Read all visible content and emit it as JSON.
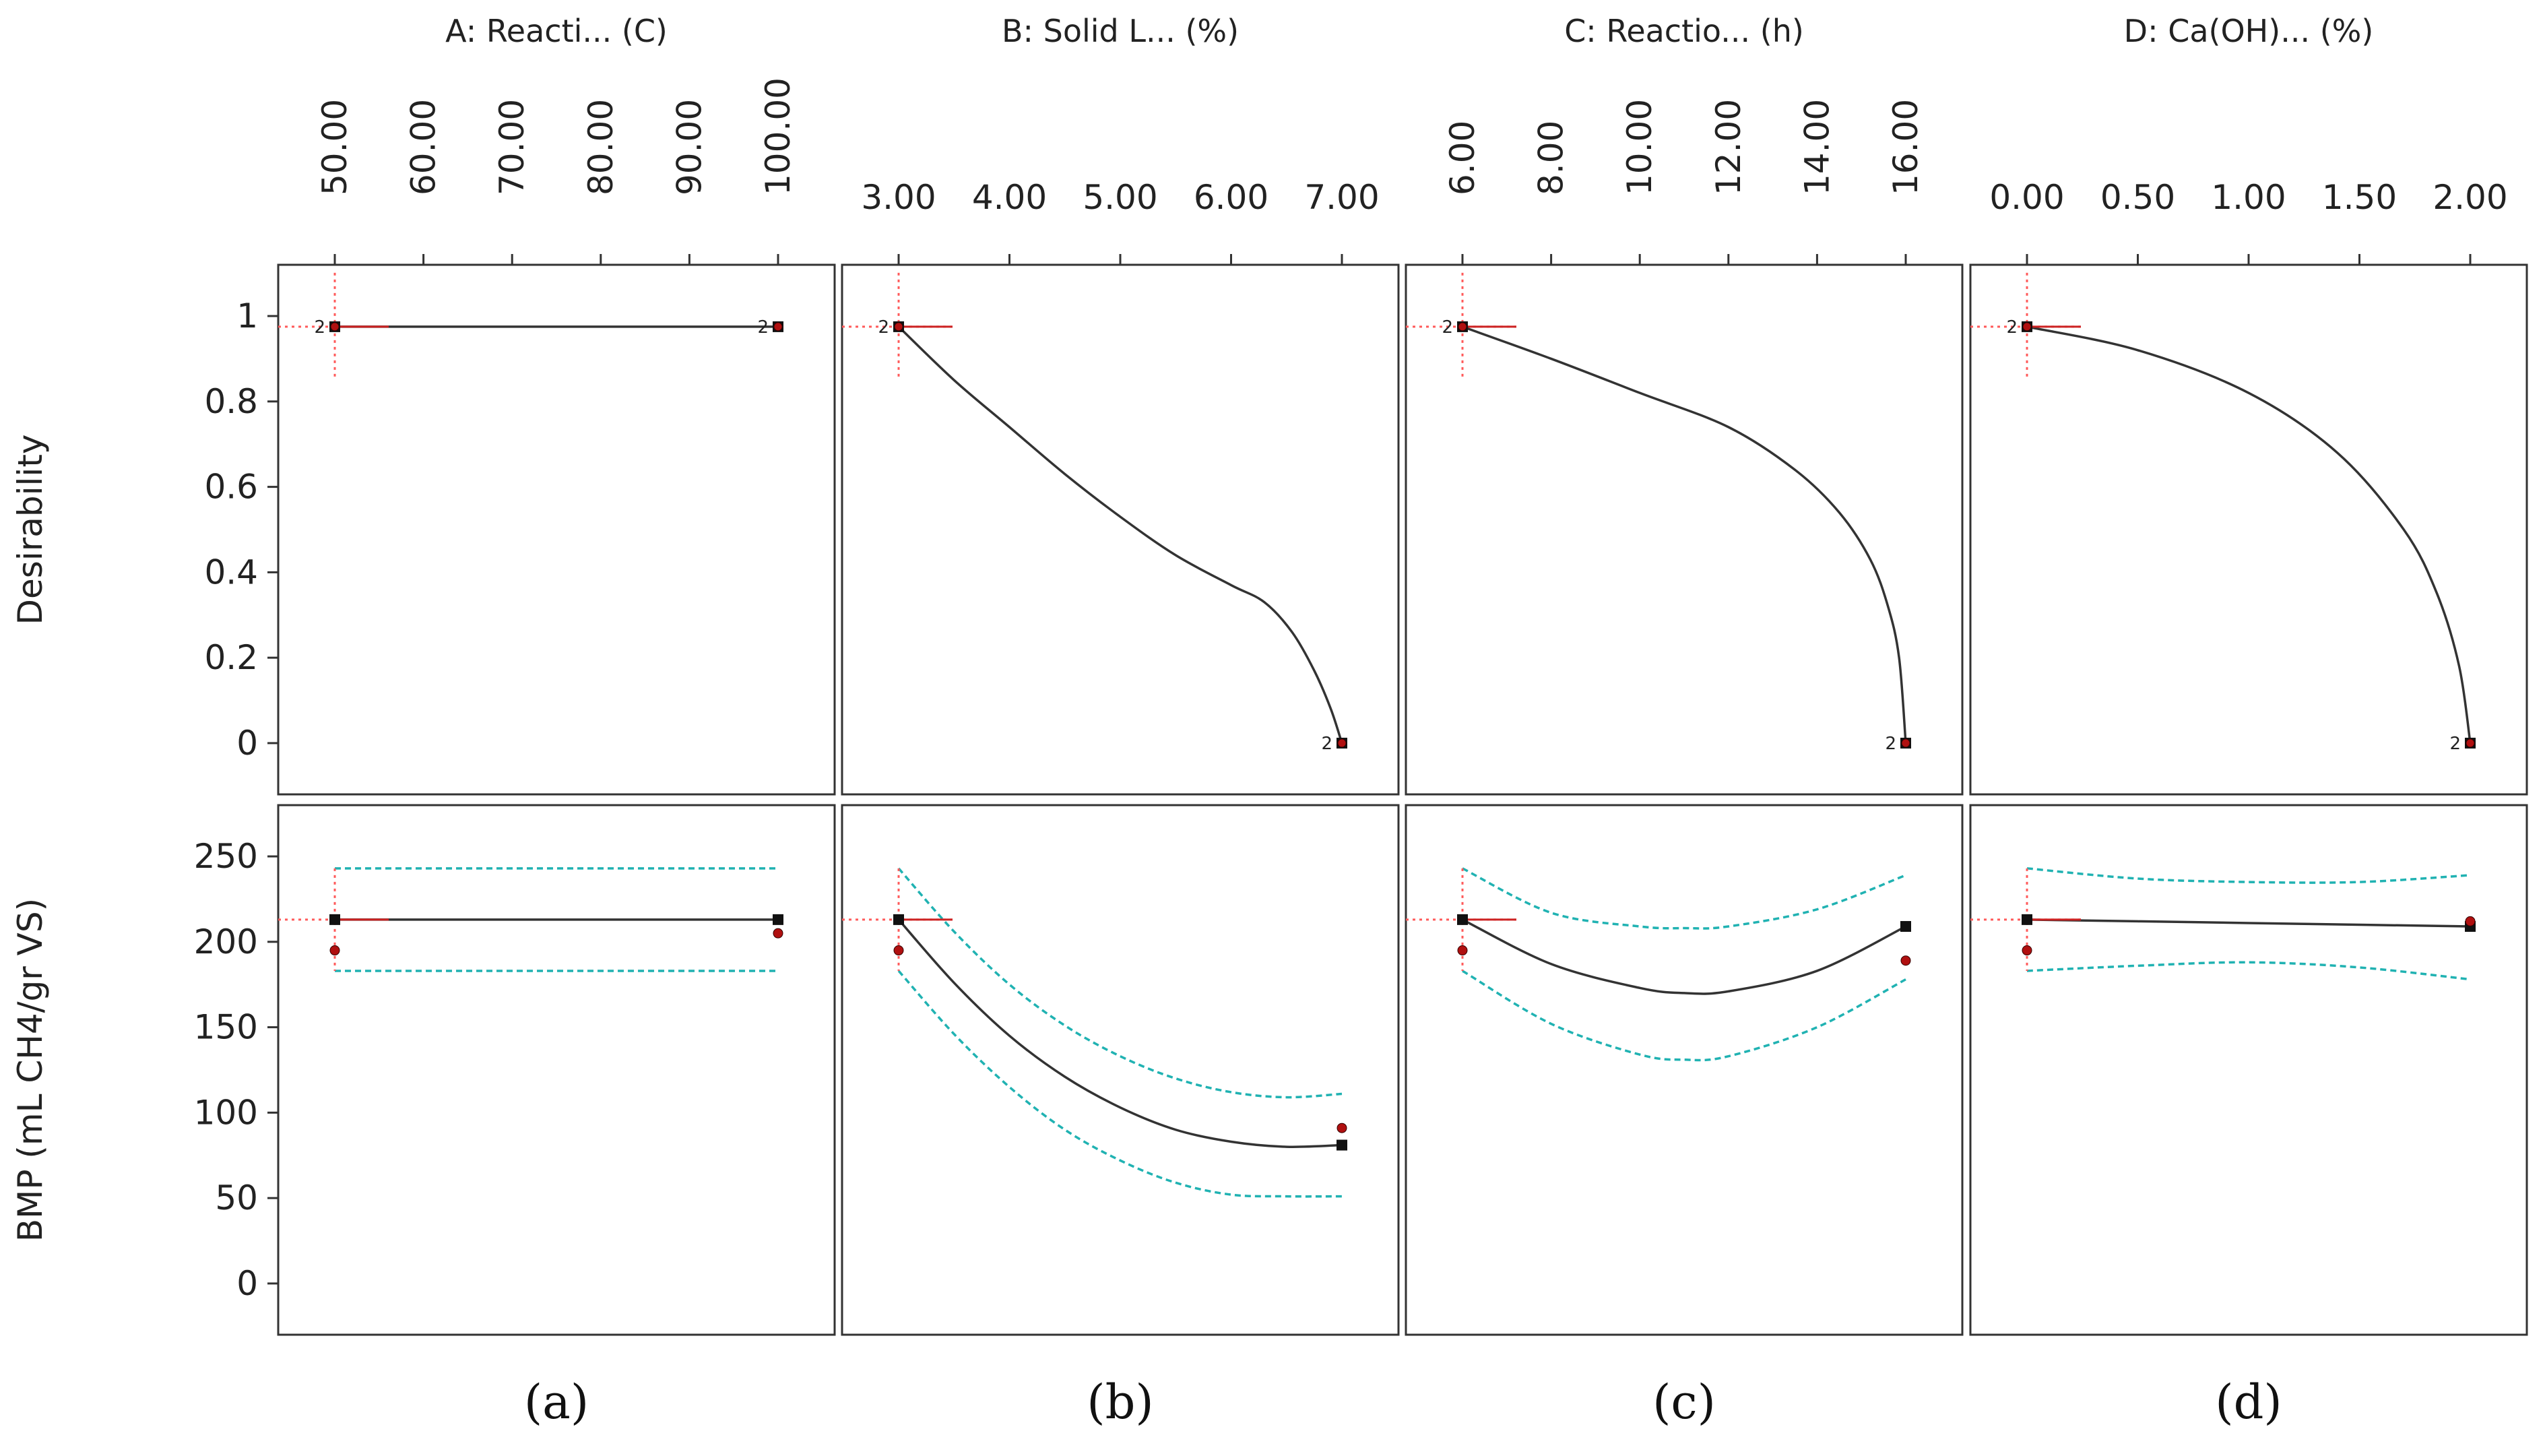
{
  "figure": {
    "panel_letters": [
      "(a)",
      "(b)",
      "(c)",
      "(d)"
    ]
  },
  "chart_data": {
    "type": "line",
    "row_ylabels": [
      "Desirability",
      "BMP (mL CH4/gr VS)"
    ],
    "rows": [
      {
        "name": "Desirability",
        "ylim": [
          -0.12,
          1.12
        ],
        "yticks": [
          0,
          0.2,
          0.4,
          0.6,
          0.8,
          1
        ],
        "ytick_labels": [
          "0",
          "0.2",
          "0.4",
          "0.6",
          "0.8",
          "1"
        ]
      },
      {
        "name": "BMP (mL CH4/gr VS)",
        "ylim": [
          -30,
          280
        ],
        "yticks": [
          0,
          50,
          100,
          150,
          200,
          250
        ],
        "ytick_labels": [
          "0",
          "50",
          "100",
          "150",
          "200",
          "250"
        ]
      }
    ],
    "factors": [
      {
        "title": "A: Reacti... (C)",
        "xrange": [
          50,
          100
        ],
        "xticks": [
          50,
          60,
          70,
          80,
          90,
          100
        ],
        "xtick_labels": [
          "50.00",
          "60.00",
          "70.00",
          "80.00",
          "90.00",
          "100.00"
        ],
        "xtick_rotated": true,
        "setpoint": 50,
        "desirability": {
          "curve": [
            [
              50,
              0.975
            ],
            [
              100,
              0.975
            ]
          ],
          "points": [
            {
              "x": 50,
              "y": 0.975,
              "label": "2"
            },
            {
              "x": 100,
              "y": 0.975,
              "label": "2"
            }
          ]
        },
        "bmp": {
          "predicted": [
            [
              50,
              213
            ],
            [
              100,
              213
            ]
          ],
          "ci_upper": [
            [
              50,
              243
            ],
            [
              100,
              243
            ]
          ],
          "ci_lower": [
            [
              50,
              183
            ],
            [
              100,
              183
            ]
          ],
          "observed": [
            [
              50,
              195
            ],
            [
              100,
              205
            ]
          ],
          "pred_markers": [
            [
              50,
              213
            ],
            [
              100,
              213
            ]
          ]
        }
      },
      {
        "title": "B: Solid L... (%)",
        "xrange": [
          3,
          7
        ],
        "xticks": [
          3,
          4,
          5,
          6,
          7
        ],
        "xtick_labels": [
          "3.00",
          "4.00",
          "5.00",
          "6.00",
          "7.00"
        ],
        "xtick_rotated": false,
        "setpoint": 3,
        "desirability": {
          "curve": [
            [
              3,
              0.975
            ],
            [
              3.5,
              0.85
            ],
            [
              4,
              0.74
            ],
            [
              4.5,
              0.63
            ],
            [
              5,
              0.53
            ],
            [
              5.5,
              0.44
            ],
            [
              6,
              0.37
            ],
            [
              6.3,
              0.33
            ],
            [
              6.55,
              0.26
            ],
            [
              6.75,
              0.17
            ],
            [
              6.9,
              0.08
            ],
            [
              7,
              0
            ]
          ],
          "points": [
            {
              "x": 3,
              "y": 0.975,
              "label": "2"
            },
            {
              "x": 7,
              "y": 0,
              "label": "2"
            }
          ]
        },
        "bmp": {
          "predicted": [
            [
              3,
              213
            ],
            [
              3.5,
              176
            ],
            [
              4,
              145
            ],
            [
              4.5,
              121
            ],
            [
              5,
              103
            ],
            [
              5.5,
              90
            ],
            [
              6,
              83
            ],
            [
              6.5,
              80
            ],
            [
              7,
              81
            ]
          ],
          "ci_upper": [
            [
              3,
              243
            ],
            [
              3.5,
              206
            ],
            [
              4,
              175
            ],
            [
              4.5,
              151
            ],
            [
              5,
              133
            ],
            [
              5.5,
              120
            ],
            [
              6,
              112
            ],
            [
              6.5,
              109
            ],
            [
              7,
              111
            ]
          ],
          "ci_lower": [
            [
              3,
              183
            ],
            [
              3.5,
              146
            ],
            [
              4,
              115
            ],
            [
              4.5,
              90
            ],
            [
              5,
              72
            ],
            [
              5.5,
              59
            ],
            [
              6,
              52
            ],
            [
              6.5,
              51
            ],
            [
              7,
              51
            ]
          ],
          "observed": [
            [
              3,
              195
            ],
            [
              7,
              91
            ]
          ],
          "pred_markers": [
            [
              3,
              213
            ],
            [
              7,
              81
            ]
          ]
        }
      },
      {
        "title": "C: Reactio... (h)",
        "xrange": [
          6,
          16
        ],
        "xticks": [
          6,
          8,
          10,
          12,
          14,
          16
        ],
        "xtick_labels": [
          "6.00",
          "8.00",
          "10.00",
          "12.00",
          "14.00",
          "16.00"
        ],
        "xtick_rotated": true,
        "setpoint": 6,
        "desirability": {
          "curve": [
            [
              6,
              0.975
            ],
            [
              8,
              0.9
            ],
            [
              10,
              0.82
            ],
            [
              12,
              0.74
            ],
            [
              13.5,
              0.64
            ],
            [
              14.5,
              0.54
            ],
            [
              15.2,
              0.43
            ],
            [
              15.6,
              0.32
            ],
            [
              15.85,
              0.2
            ],
            [
              16,
              0
            ]
          ],
          "points": [
            {
              "x": 6,
              "y": 0.975,
              "label": "2"
            },
            {
              "x": 16,
              "y": 0,
              "label": "2"
            }
          ]
        },
        "bmp": {
          "predicted": [
            [
              6,
              213
            ],
            [
              8,
              187
            ],
            [
              10,
              173
            ],
            [
              11,
              170
            ],
            [
              12,
              171
            ],
            [
              14,
              183
            ],
            [
              16,
              209
            ]
          ],
          "ci_upper": [
            [
              6,
              243
            ],
            [
              8,
              217
            ],
            [
              10,
              209
            ],
            [
              11,
              208
            ],
            [
              12,
              209
            ],
            [
              14,
              219
            ],
            [
              16,
              239
            ]
          ],
          "ci_lower": [
            [
              6,
              183
            ],
            [
              8,
              152
            ],
            [
              10,
              134
            ],
            [
              11,
              131
            ],
            [
              12,
              133
            ],
            [
              14,
              150
            ],
            [
              16,
              178
            ]
          ],
          "observed": [
            [
              6,
              195
            ],
            [
              16,
              189
            ]
          ],
          "pred_markers": [
            [
              6,
              213
            ],
            [
              16,
              209
            ]
          ]
        }
      },
      {
        "title": "D: Ca(OH)... (%)",
        "xrange": [
          0,
          2
        ],
        "xticks": [
          0,
          0.5,
          1,
          1.5,
          2
        ],
        "xtick_labels": [
          "0.00",
          "0.50",
          "1.00",
          "1.50",
          "2.00"
        ],
        "xtick_rotated": false,
        "setpoint": 0,
        "desirability": {
          "curve": [
            [
              0,
              0.975
            ],
            [
              0.5,
              0.92
            ],
            [
              1,
              0.82
            ],
            [
              1.4,
              0.68
            ],
            [
              1.7,
              0.5
            ],
            [
              1.85,
              0.35
            ],
            [
              1.95,
              0.18
            ],
            [
              2,
              0
            ]
          ],
          "points": [
            {
              "x": 0,
              "y": 0.975,
              "label": "2"
            },
            {
              "x": 2,
              "y": 0,
              "label": "2"
            }
          ]
        },
        "bmp": {
          "predicted": [
            [
              0,
              213
            ],
            [
              0.5,
              212
            ],
            [
              1,
              211
            ],
            [
              1.5,
              210
            ],
            [
              2,
              209
            ]
          ],
          "ci_upper": [
            [
              0,
              243
            ],
            [
              0.5,
              237
            ],
            [
              1,
              235
            ],
            [
              1.5,
              235
            ],
            [
              2,
              239
            ]
          ],
          "ci_lower": [
            [
              0,
              183
            ],
            [
              0.5,
              186
            ],
            [
              1,
              188
            ],
            [
              1.5,
              185
            ],
            [
              2,
              178
            ]
          ],
          "observed": [
            [
              0,
              195
            ],
            [
              2,
              212
            ]
          ],
          "pred_markers": [
            [
              0,
              213
            ],
            [
              2,
              209
            ]
          ]
        }
      }
    ]
  }
}
